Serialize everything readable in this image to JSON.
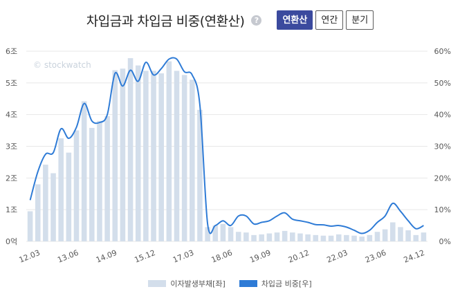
{
  "header": {
    "title": "차입금과 차입금 비중(연환산)",
    "help": "?",
    "tabs": [
      {
        "label": "연환산",
        "active": true
      },
      {
        "label": "연간",
        "active": false
      },
      {
        "label": "분기",
        "active": false
      }
    ]
  },
  "watermark": "© stockwatch",
  "colors": {
    "bar": "#d3deeb",
    "line": "#2e7bd6",
    "grid": "#e7e7e7",
    "axis_text": "#555555"
  },
  "chart_data": {
    "type": "bar",
    "x_tick_labels": [
      "12.03",
      "13.06",
      "14.09",
      "15.12",
      "17.03",
      "18.06",
      "19.09",
      "20.12",
      "22.03",
      "23.06",
      "24.12"
    ],
    "y_left": {
      "ticks": [
        "0억",
        "1조",
        "2조",
        "3조",
        "4조",
        "5조",
        "6조"
      ],
      "range": [
        0,
        6
      ]
    },
    "y_right": {
      "ticks": [
        "0%",
        "10%",
        "20%",
        "30%",
        "40%",
        "50%",
        "60%"
      ],
      "range": [
        0,
        60
      ]
    },
    "grid": true,
    "legend_position": "bottom",
    "series": [
      {
        "name": "이자발생부채[좌]",
        "type": "bar",
        "axis": "left",
        "values": [
          0.95,
          1.8,
          2.42,
          2.15,
          3.25,
          2.8,
          3.5,
          4.42,
          3.58,
          3.8,
          3.95,
          5.4,
          5.45,
          5.78,
          5.55,
          5.38,
          5.38,
          5.3,
          5.68,
          5.38,
          5.25,
          5.1,
          4.15,
          0.45,
          0.5,
          0.55,
          0.45,
          0.3,
          0.28,
          0.2,
          0.22,
          0.25,
          0.28,
          0.33,
          0.28,
          0.25,
          0.22,
          0.2,
          0.18,
          0.18,
          0.22,
          0.2,
          0.18,
          0.15,
          0.2,
          0.3,
          0.38,
          0.6,
          0.45,
          0.35,
          0.2,
          0.28
        ]
      },
      {
        "name": "차입금 비중[우]",
        "type": "line",
        "axis": "right",
        "values": [
          13,
          22,
          27.5,
          28,
          35.5,
          32.5,
          36,
          43.5,
          38,
          37.5,
          40,
          53,
          49,
          54,
          50.5,
          56.5,
          52.5,
          54.5,
          57.5,
          57.5,
          53.5,
          52.5,
          43,
          5.5,
          5,
          6.5,
          5,
          8,
          8,
          5.5,
          6,
          6.5,
          8,
          9,
          7,
          6.5,
          6,
          5.3,
          5.2,
          4.8,
          5,
          4.5,
          3.5,
          2.5,
          3.5,
          6,
          8,
          12,
          9.5,
          6.5,
          4,
          5
        ]
      }
    ]
  }
}
